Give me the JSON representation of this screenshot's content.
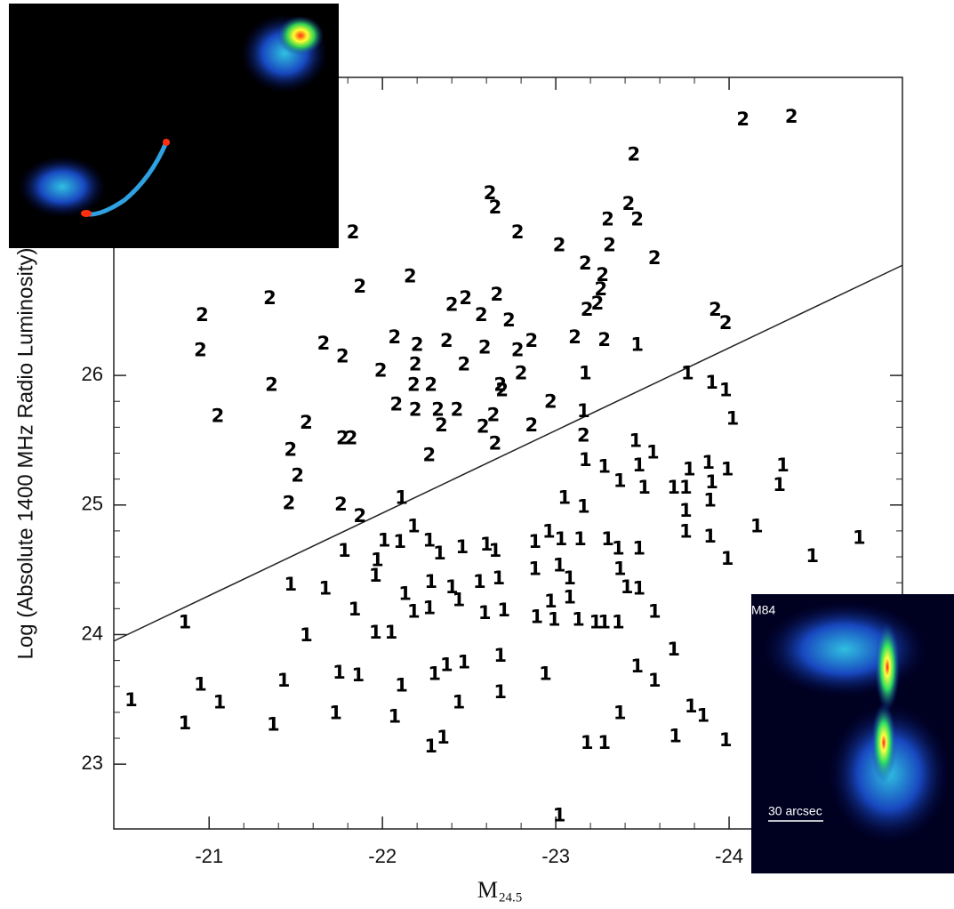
{
  "chart_data": {
    "type": "scatter",
    "y_label": "Log (Absolute 1400 MHz Radio Luminosity)",
    "x_label": "M",
    "x_label_sub": "24.5",
    "xlim": [
      -20.45,
      -25.0
    ],
    "xticks": [
      -21,
      -22,
      -23,
      -24
    ],
    "ylim": [
      22.5,
      28.3
    ],
    "yticks": [
      23,
      24,
      25,
      26
    ],
    "fit_line": {
      "x": [
        -20.45,
        -25.0
      ],
      "y": [
        23.95,
        26.85
      ]
    },
    "annotations": [
      "M84",
      "30 arcsec"
    ],
    "series": [
      {
        "name": "2",
        "color": "#000000",
        "x": [
          -24.08,
          -24.36,
          -23.45,
          -22.62,
          -22.65,
          -23.42,
          -23.3,
          -23.47,
          -22.78,
          -21.83,
          -23.02,
          -23.31,
          -23.57,
          -23.17,
          -23.27,
          -22.16,
          -21.87,
          -21.35,
          -23.26,
          -22.66,
          -22.4,
          -22.48,
          -23.24,
          -23.18,
          -22.57,
          -22.73,
          -23.92,
          -23.98,
          -20.96,
          -20.95,
          -21.66,
          -21.77,
          -22.07,
          -22.2,
          -22.37,
          -22.59,
          -22.78,
          -22.86,
          -23.11,
          -23.28,
          -22.47,
          -21.99,
          -22.19,
          -21.36,
          -22.18,
          -22.28,
          -22.68,
          -22.8,
          -22.69,
          -22.08,
          -22.19,
          -22.32,
          -22.43,
          -22.34,
          -22.64,
          -22.58,
          -22.86,
          -22.97,
          -23.16,
          -21.05,
          -21.56,
          -21.47,
          -21.77,
          -21.82,
          -21.51,
          -22.27,
          -22.65,
          -21.46,
          -21.76,
          -21.87
        ],
        "y": [
          27.97,
          27.99,
          27.7,
          27.4,
          27.29,
          27.32,
          27.2,
          27.2,
          27.1,
          27.1,
          27.0,
          27.0,
          26.9,
          26.86,
          26.77,
          26.76,
          26.68,
          26.59,
          26.66,
          26.62,
          26.54,
          26.59,
          26.55,
          26.5,
          26.46,
          26.42,
          26.5,
          26.4,
          26.46,
          26.19,
          26.24,
          26.14,
          26.29,
          26.23,
          26.26,
          26.21,
          26.19,
          26.26,
          26.29,
          26.27,
          26.08,
          26.03,
          26.08,
          25.92,
          25.92,
          25.92,
          25.92,
          26.01,
          25.88,
          25.77,
          25.73,
          25.73,
          25.73,
          25.61,
          25.69,
          25.6,
          25.61,
          25.79,
          25.53,
          25.68,
          25.63,
          25.42,
          25.51,
          25.51,
          25.22,
          25.38,
          25.47,
          25.01,
          25.0,
          24.91
        ]
      },
      {
        "name": "1",
        "color": "#000000",
        "x": [
          -23.47,
          -23.17,
          -23.76,
          -23.9,
          -23.98,
          -23.16,
          -24.02,
          -23.46,
          -23.56,
          -23.17,
          -23.28,
          -23.37,
          -23.48,
          -23.51,
          -23.77,
          -23.88,
          -23.99,
          -23.9,
          -24.31,
          -24.29,
          -23.05,
          -23.16,
          -23.68,
          -23.75,
          -23.75,
          -23.89,
          -24.16,
          -23.75,
          -23.89,
          -24.75,
          -24.48,
          -23.99,
          -22.11,
          -22.18,
          -22.01,
          -22.1,
          -21.97,
          -21.78,
          -22.27,
          -22.33,
          -22.46,
          -22.6,
          -22.65,
          -22.88,
          -22.96,
          -23.03,
          -23.14,
          -23.3,
          -23.36,
          -23.48,
          -21.47,
          -21.67,
          -21.96,
          -22.28,
          -22.4,
          -22.56,
          -22.67,
          -22.88,
          -23.02,
          -23.08,
          -23.37,
          -23.41,
          -23.48,
          -20.86,
          -21.56,
          -21.84,
          -21.96,
          -22.05,
          -22.13,
          -22.18,
          -22.27,
          -22.44,
          -22.59,
          -22.7,
          -22.89,
          -22.97,
          -22.99,
          -23.08,
          -23.13,
          -23.23,
          -23.28,
          -23.36,
          -23.57,
          -23.68,
          -21.75,
          -21.86,
          -22.3,
          -22.37,
          -22.47,
          -22.68,
          -22.94,
          -23.47,
          -23.57,
          -20.95,
          -21.06,
          -21.43,
          -22.11,
          -22.44,
          -22.68,
          -20.55,
          -20.86,
          -21.37,
          -21.73,
          -22.07,
          -22.28,
          -22.35,
          -23.02,
          -23.18,
          -23.28,
          -23.37,
          -23.69,
          -23.78,
          -23.85,
          -23.98
        ],
        "y": [
          26.23,
          26.01,
          26.01,
          25.94,
          25.88,
          25.72,
          25.66,
          25.49,
          25.4,
          25.34,
          25.29,
          25.18,
          25.3,
          25.13,
          25.27,
          25.32,
          25.27,
          25.17,
          25.3,
          25.15,
          25.05,
          24.98,
          25.13,
          25.13,
          24.95,
          25.03,
          24.83,
          24.79,
          24.75,
          24.74,
          24.6,
          24.58,
          25.05,
          24.83,
          24.72,
          24.71,
          24.57,
          24.64,
          24.72,
          24.62,
          24.67,
          24.69,
          24.64,
          24.71,
          24.79,
          24.73,
          24.73,
          24.73,
          24.66,
          24.66,
          24.38,
          24.35,
          24.45,
          24.4,
          24.36,
          24.4,
          24.43,
          24.5,
          24.53,
          24.43,
          24.5,
          24.36,
          24.35,
          24.09,
          23.99,
          24.19,
          24.01,
          24.01,
          24.31,
          24.17,
          24.2,
          24.26,
          24.16,
          24.18,
          24.13,
          24.25,
          24.11,
          24.28,
          24.11,
          24.09,
          24.09,
          24.09,
          24.17,
          23.88,
          23.7,
          23.68,
          23.69,
          23.76,
          23.78,
          23.83,
          23.69,
          23.75,
          23.64,
          23.61,
          23.47,
          23.64,
          23.6,
          23.47,
          23.55,
          23.49,
          23.31,
          23.3,
          23.39,
          23.36,
          23.13,
          23.2,
          22.6,
          23.16,
          23.16,
          23.39,
          23.21,
          23.44,
          23.37,
          23.18
        ]
      }
    ]
  }
}
